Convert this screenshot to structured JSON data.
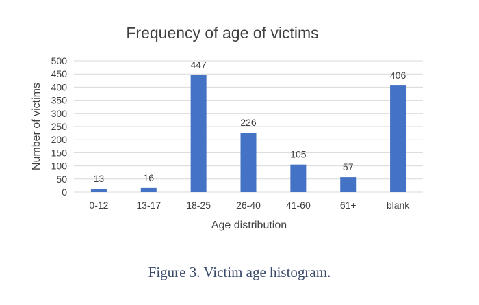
{
  "figure": {
    "caption": "Figure 3. Victim age histogram."
  },
  "chart_data": {
    "type": "bar",
    "title": "Frequency of age of victims",
    "xlabel": "Age distribution",
    "ylabel": "Number of victims",
    "categories": [
      "0-12",
      "13-17",
      "18-25",
      "26-40",
      "41-60",
      "61+",
      "blank"
    ],
    "values": [
      13,
      16,
      447,
      226,
      105,
      57,
      406
    ],
    "ylim": [
      0,
      500
    ],
    "yticks": [
      0,
      50,
      100,
      150,
      200,
      250,
      300,
      350,
      400,
      450,
      500
    ],
    "grid": true,
    "legend": "none",
    "data_labels": true,
    "bar_color": "#4472c4",
    "grid_color": "#d9d9d9",
    "text_color": "#404040"
  }
}
